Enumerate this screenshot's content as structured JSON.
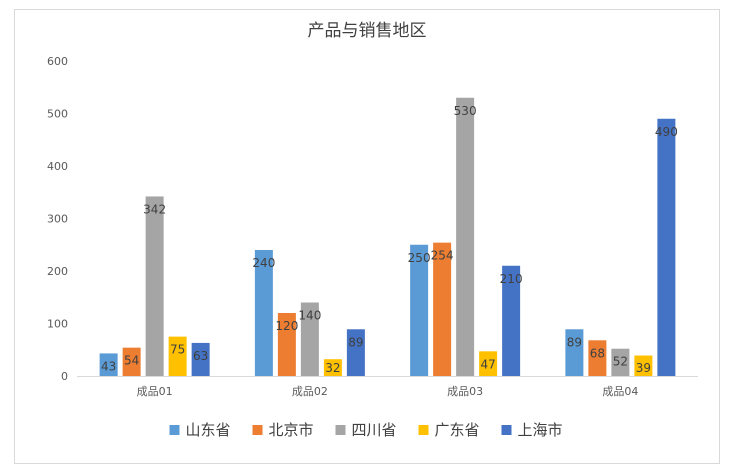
{
  "chart_data": {
    "type": "bar",
    "title": "产品与销售地区",
    "categories": [
      "成品01",
      "成品02",
      "成品03",
      "成品04"
    ],
    "series": [
      {
        "name": "山东省",
        "color": "#5b9bd5",
        "values": [
          43,
          240,
          250,
          89
        ]
      },
      {
        "name": "北京市",
        "color": "#ed7d31",
        "values": [
          54,
          120,
          254,
          68
        ]
      },
      {
        "name": "四川省",
        "color": "#a5a5a5",
        "values": [
          342,
          140,
          530,
          52
        ]
      },
      {
        "name": "广东省",
        "color": "#ffc000",
        "values": [
          75,
          32,
          47,
          39
        ]
      },
      {
        "name": "上海市",
        "color": "#4472c4",
        "values": [
          63,
          89,
          210,
          490
        ]
      }
    ],
    "ylim": [
      0,
      600
    ],
    "yticks": [
      0,
      100,
      200,
      300,
      400,
      500,
      600
    ],
    "grid": false,
    "legend_position": "bottom",
    "data_labels": true
  }
}
